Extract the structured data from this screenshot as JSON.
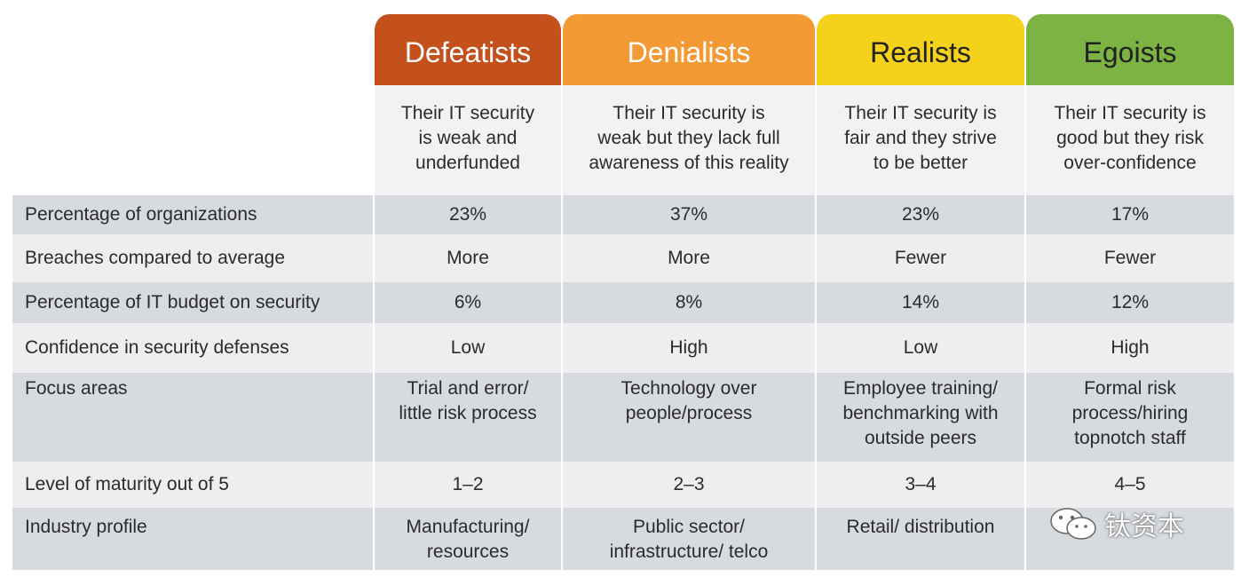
{
  "columns": [
    {
      "name": "Defeatists",
      "color": "#c4501c",
      "description": "Their IT security\nis weak and\nunderfunded"
    },
    {
      "name": "Denialists",
      "color": "#f39a34",
      "description": "Their IT security  is\nweak but they lack full\nawareness of this reality"
    },
    {
      "name": "Realists",
      "color": "#f4d11a",
      "description": "Their IT security is\nfair and they strive\nto be better"
    },
    {
      "name": "Egoists",
      "color": "#7cb342",
      "description": "Their IT security is\ngood but they risk\nover-confidence"
    }
  ],
  "rows": [
    {
      "label": "Percentage of organizations",
      "values": [
        "23%",
        "37%",
        "23%",
        "17%"
      ]
    },
    {
      "label": "Breaches compared to average",
      "values": [
        "More",
        "More",
        "Fewer",
        "Fewer"
      ]
    },
    {
      "label": "Percentage of IT budget on security",
      "values": [
        "6%",
        "8%",
        "14%",
        "12%"
      ]
    },
    {
      "label": "Confidence in security defenses",
      "values": [
        "Low",
        "High",
        "Low",
        "High"
      ]
    },
    {
      "label": "Focus areas",
      "values": [
        "Trial and error/\nlittle risk process",
        "Technology over\npeople/process",
        "Employee training/\nbenchmarking with\noutside peers",
        "Formal risk\nprocess/hiring\ntopnotch staff"
      ]
    },
    {
      "label": "Level of maturity out of 5",
      "values": [
        "1–2",
        "2–3",
        "3–4",
        "4–5"
      ]
    },
    {
      "label": "Industry profile",
      "values": [
        "Manufacturing/\nresources",
        "Public sector/\ninfrastructure/ telco",
        "Retail/ distribution",
        ""
      ]
    }
  ],
  "watermark": {
    "text": "钛资本",
    "icon": "wechat-icon"
  }
}
